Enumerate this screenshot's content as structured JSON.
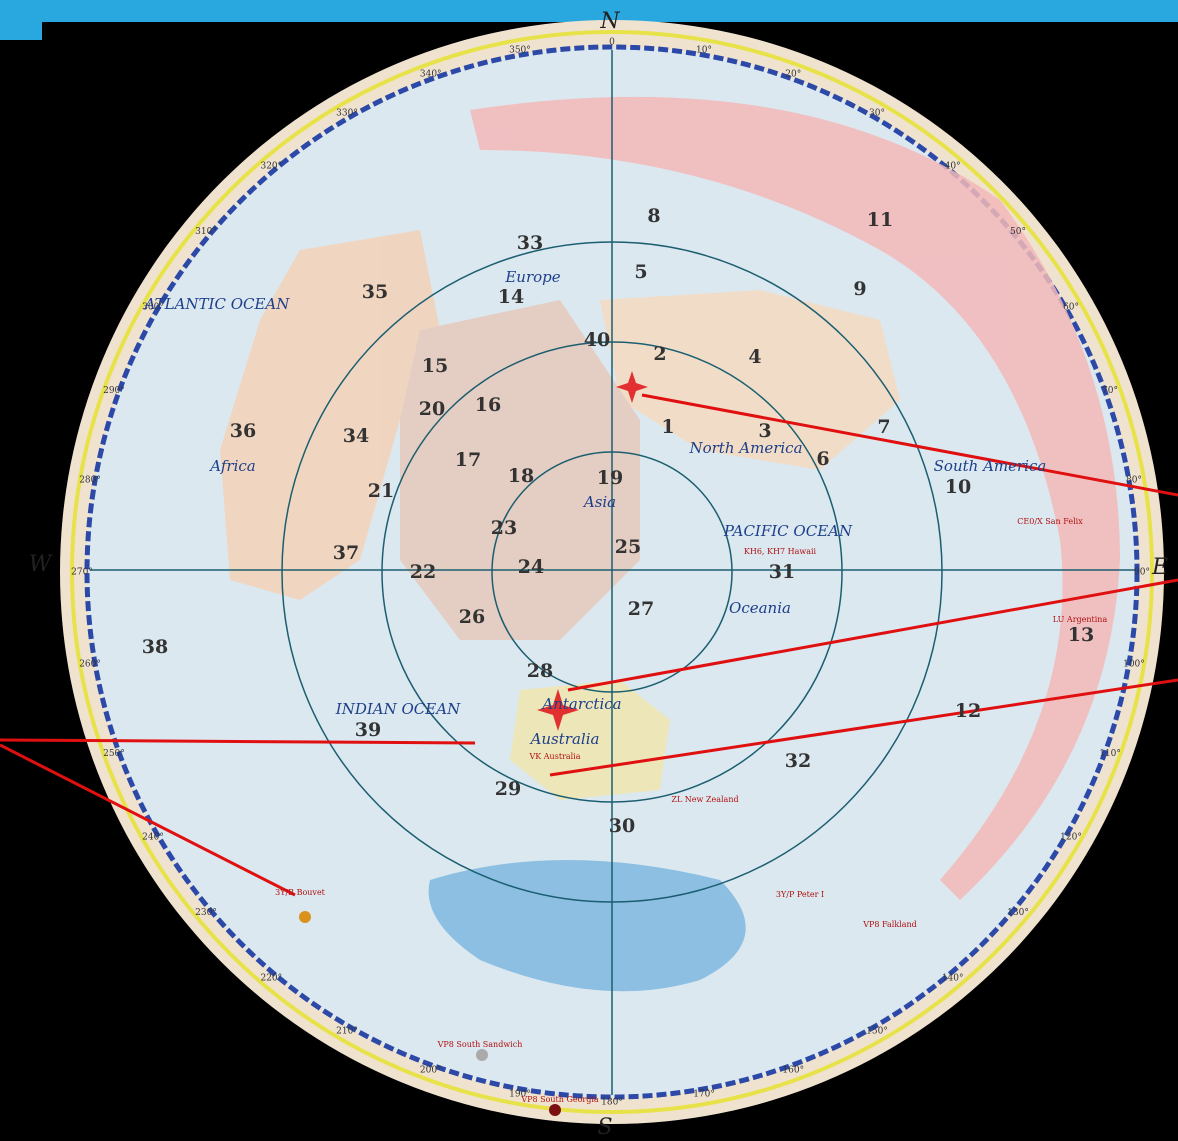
{
  "compass": {
    "cardinals": [
      "N",
      "E",
      "S",
      "W"
    ],
    "degrees": [
      "0",
      "10°",
      "20°",
      "30°",
      "40°",
      "50°",
      "60°",
      "70°",
      "80°",
      "90°",
      "100°",
      "110°",
      "120°",
      "130°",
      "140°",
      "150°",
      "160°",
      "170°",
      "180°",
      "190°",
      "200°",
      "210°",
      "220°",
      "230°",
      "240°",
      "250°",
      "260°",
      "270°",
      "280°",
      "290°",
      "300°",
      "310°",
      "320°",
      "330°",
      "340°",
      "350°"
    ]
  },
  "zones": [
    "1",
    "2",
    "3",
    "4",
    "5",
    "6",
    "7",
    "8",
    "9",
    "10",
    "11",
    "12",
    "13",
    "14",
    "15",
    "16",
    "17",
    "18",
    "19",
    "20",
    "21",
    "22",
    "23",
    "24",
    "25",
    "26",
    "27",
    "28",
    "29",
    "30",
    "31",
    "32",
    "33",
    "34",
    "35",
    "36",
    "37",
    "38",
    "39",
    "40"
  ],
  "regions": [
    "ATLANTIC OCEAN",
    "PACIFIC OCEAN",
    "INDIAN OCEAN",
    "Europe",
    "Asia",
    "Africa",
    "North America",
    "South America",
    "Oceania",
    "Antarctica",
    "Australia"
  ],
  "prefixes": [
    "3Y/B Bouvet",
    "VP8 South Sandwich",
    "VP8 South Georgia",
    "VP8 Falkland",
    "3Y/P Peter I",
    "VK Australia",
    "ZL New Zealand",
    "KH6, KH7 Hawaii",
    "CE0/X San Felix",
    "LU Argentina"
  ]
}
